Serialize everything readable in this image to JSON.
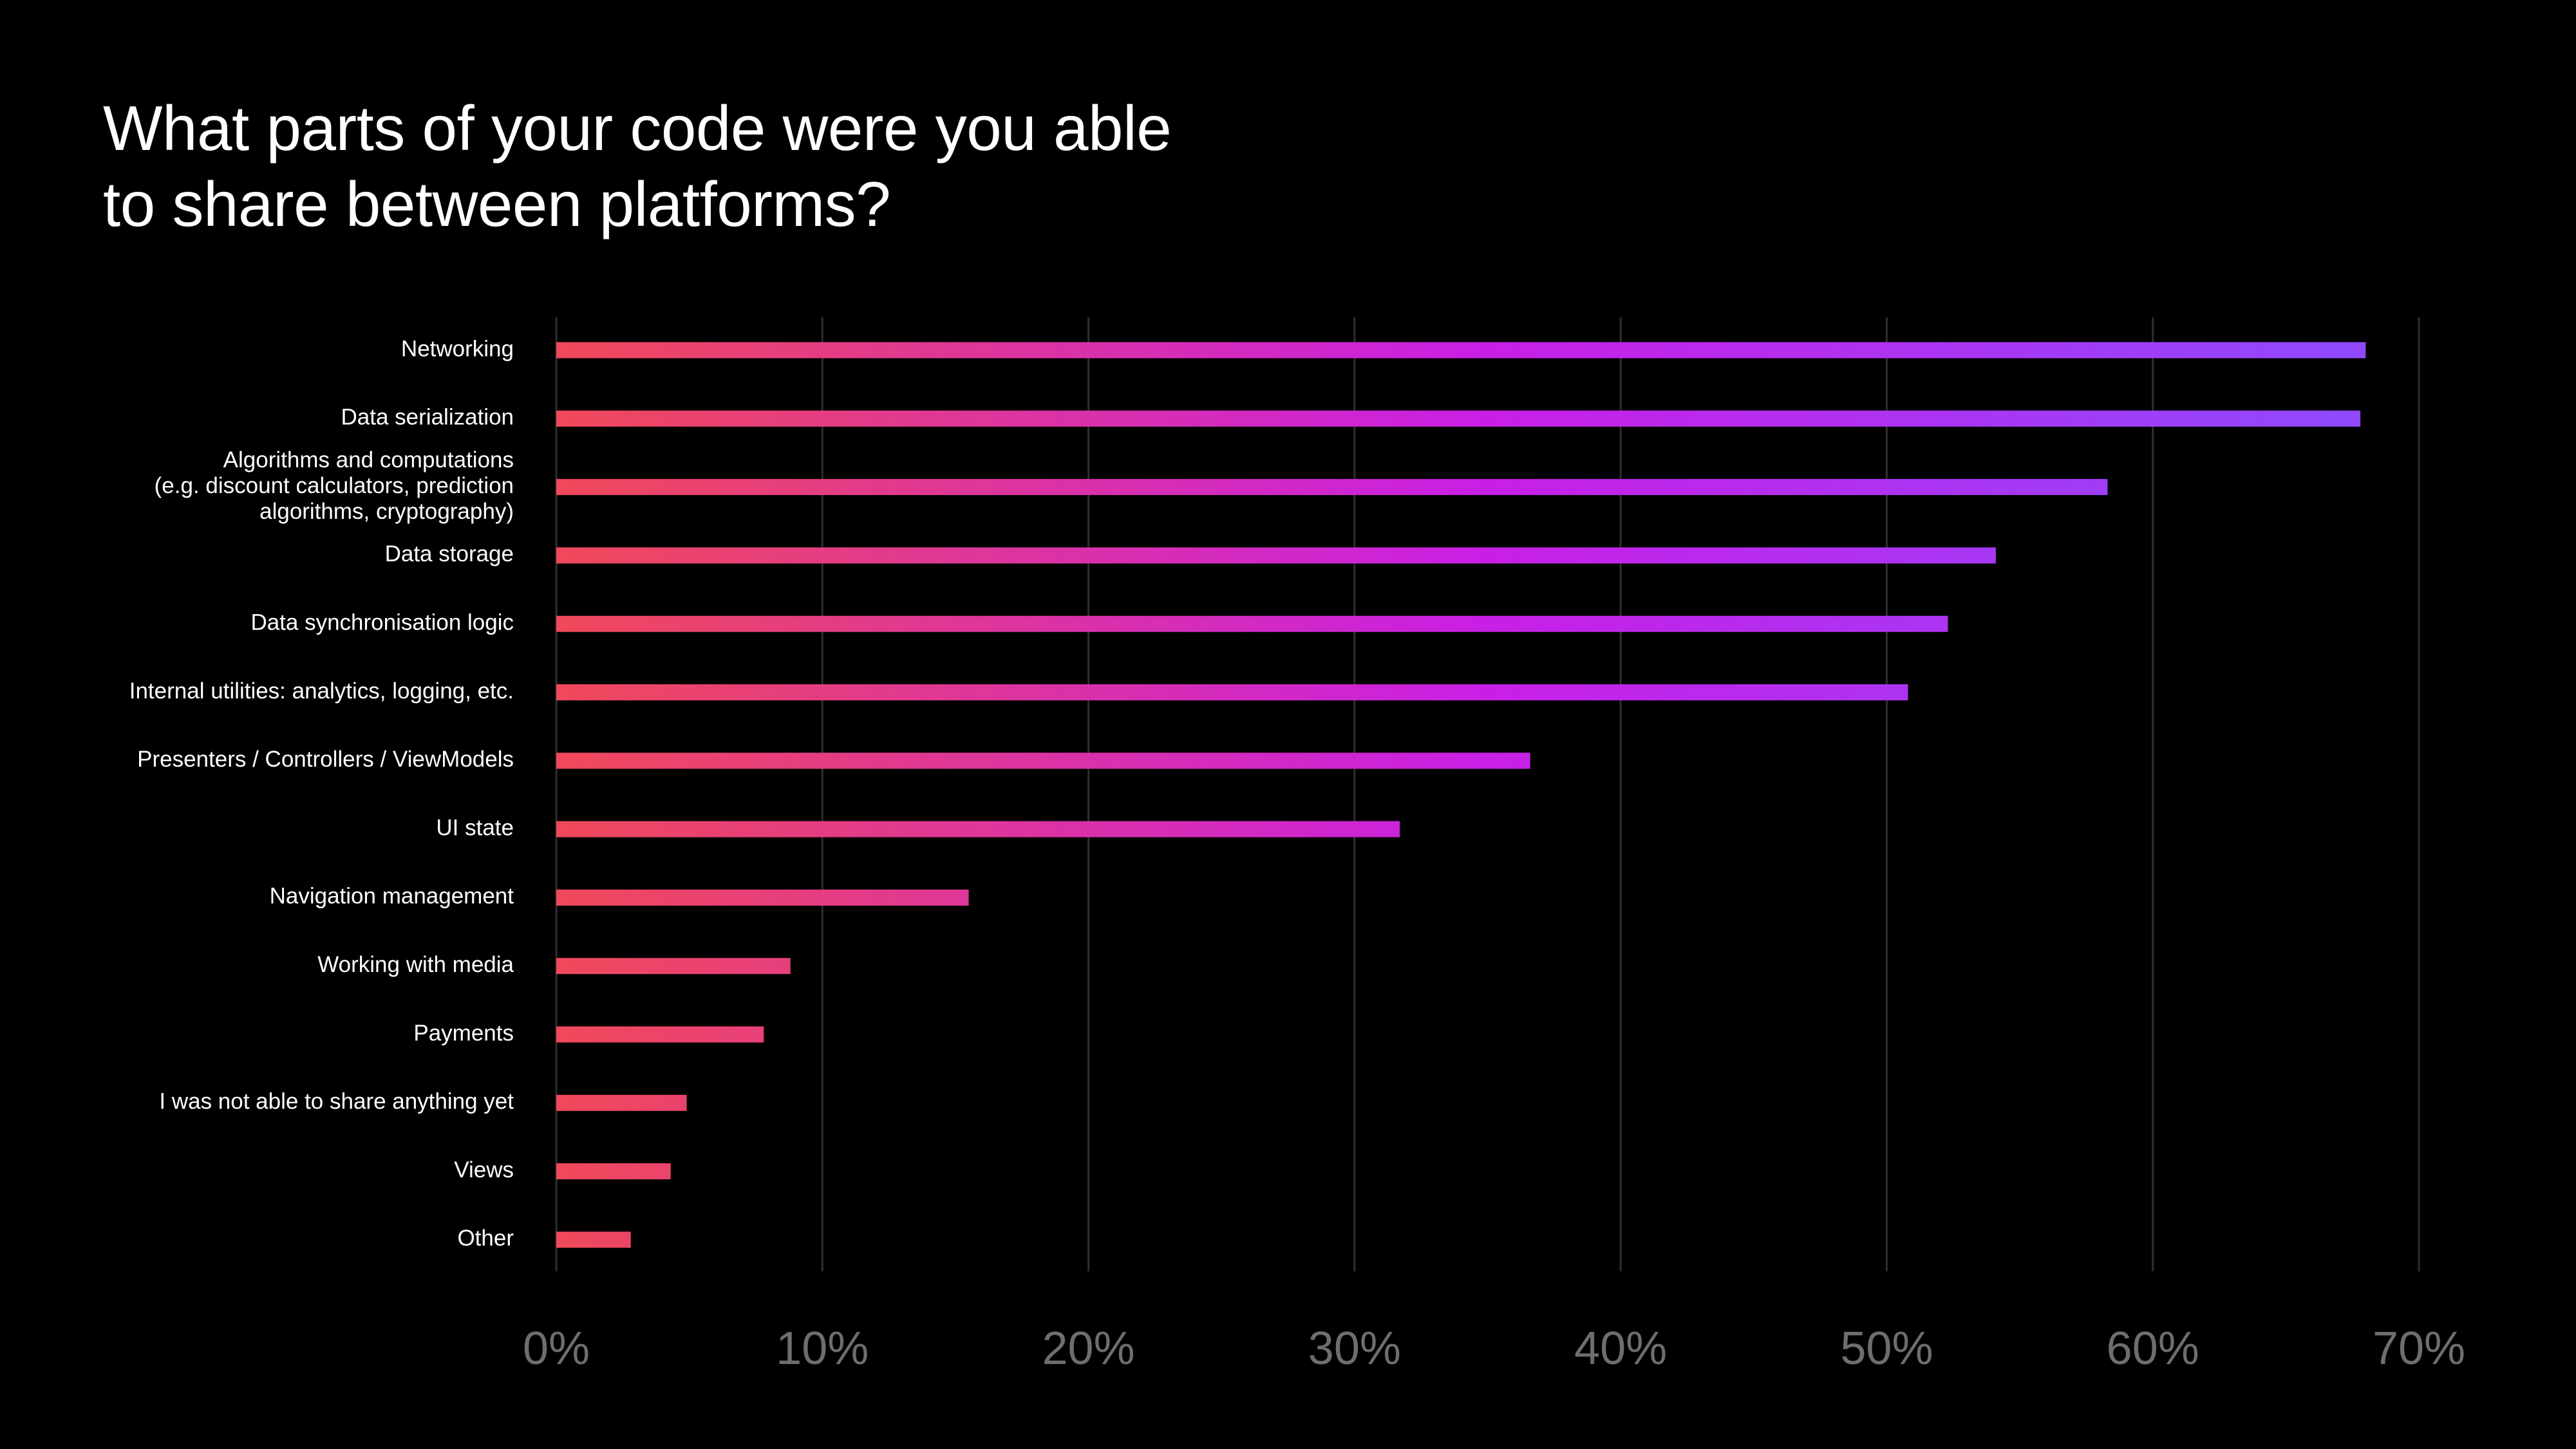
{
  "title_lines": [
    "What parts of your code were you able",
    "to share between platforms?"
  ],
  "chart_data": {
    "type": "bar",
    "orientation": "horizontal",
    "title": "What parts of your code were you able to share between platforms?",
    "xlabel": "",
    "ylabel": "",
    "xlim": [
      0,
      70
    ],
    "x_ticks": [
      "0%",
      "10%",
      "20%",
      "30%",
      "40%",
      "50%",
      "60%",
      "70%"
    ],
    "grid": true,
    "legend": "none",
    "colors": {
      "gradient_start": "#f0495a",
      "gradient_mid": "#c81fe6",
      "gradient_end": "#8c4cff",
      "gridline": "#2e2e2e",
      "tick_text": "#6e6e6e",
      "label_text": "#ffffff",
      "background": "#000000"
    },
    "categories": [
      [
        "Networking"
      ],
      [
        "Data serialization"
      ],
      [
        "Algorithms and computations",
        "(e.g. discount calculators, prediction",
        "algorithms, cryptography)"
      ],
      [
        "Data storage"
      ],
      [
        "Data synchronisation logic"
      ],
      [
        "Internal utilities: analytics, logging, etc."
      ],
      [
        "Presenters / Controllers / ViewModels"
      ],
      [
        "UI state"
      ],
      [
        "Navigation management"
      ],
      [
        "Working with media"
      ],
      [
        "Payments"
      ],
      [
        "I was not able to share anything yet"
      ],
      [
        "Views"
      ],
      [
        "Other"
      ]
    ],
    "values": [
      68,
      67.8,
      58.3,
      54.1,
      52.3,
      50.8,
      36.6,
      31.7,
      15.5,
      8.8,
      7.8,
      4.9,
      4.3,
      2.8
    ]
  }
}
